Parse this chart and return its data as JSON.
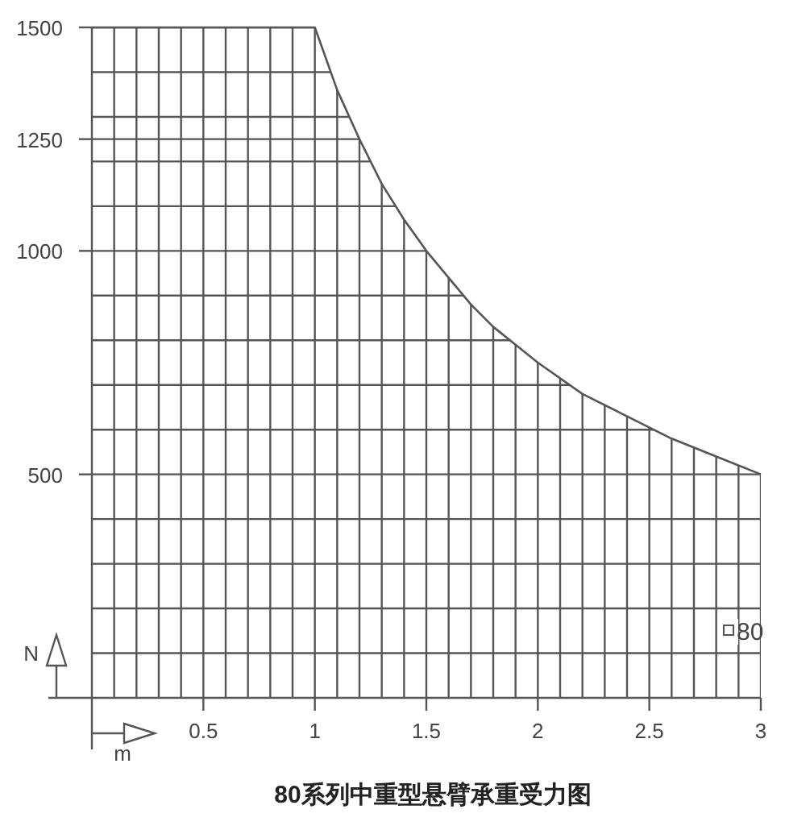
{
  "chart_data": {
    "type": "area",
    "title": "80系列中重型悬臂承重受力图",
    "xlabel": "m",
    "ylabel": "N",
    "x": [
      0,
      1,
      1.1,
      1.2,
      1.3,
      1.4,
      1.5,
      1.6,
      1.7,
      1.8,
      1.9,
      2,
      2.2,
      2.4,
      2.6,
      2.8,
      3
    ],
    "series": [
      {
        "name": "80",
        "color": "#555555",
        "values": [
          1500,
          1500,
          1360,
          1250,
          1150,
          1070,
          1000,
          940,
          880,
          830,
          790,
          750,
          680,
          630,
          580,
          540,
          500
        ]
      }
    ],
    "xlim": [
      0,
      3
    ],
    "ylim": [
      0,
      1500
    ],
    "xticks": [
      {
        "value": 0.1,
        "label": null
      },
      {
        "value": 0.2,
        "label": null
      },
      {
        "value": 0.3,
        "label": null
      },
      {
        "value": 0.4,
        "label": null
      },
      0.5,
      {
        "value": 0.6,
        "label": null
      },
      {
        "value": 0.7,
        "label": null
      },
      {
        "value": 0.8,
        "label": null
      },
      {
        "value": 0.9,
        "label": null
      },
      1,
      {
        "value": 1.1,
        "label": null
      },
      {
        "value": 1.2,
        "label": null
      },
      {
        "value": 1.3,
        "label": null
      },
      {
        "value": 1.4,
        "label": null
      },
      1.5,
      {
        "value": 1.6,
        "label": null
      },
      {
        "value": 1.7,
        "label": null
      },
      {
        "value": 1.8,
        "label": null
      },
      {
        "value": 1.9,
        "label": null
      },
      2,
      {
        "value": 2.1,
        "label": null
      },
      {
        "value": 2.2,
        "label": null
      },
      {
        "value": 2.3,
        "label": null
      },
      {
        "value": 2.4,
        "label": null
      },
      2.5,
      {
        "value": 2.6,
        "label": null
      },
      {
        "value": 2.7,
        "label": null
      },
      {
        "value": 2.8,
        "label": null
      },
      {
        "value": 2.9,
        "label": null
      },
      3
    ],
    "yticks": [
      {
        "value": 100,
        "label": null
      },
      {
        "value": 200,
        "label": null
      },
      {
        "value": 300,
        "label": null
      },
      {
        "value": 400,
        "label": null
      },
      500,
      {
        "value": 600,
        "label": null
      },
      {
        "value": 700,
        "label": null
      },
      {
        "value": 800,
        "label": null
      },
      {
        "value": 900,
        "label": null
      },
      1000,
      {
        "value": 1100,
        "label": null
      },
      {
        "value": 1200,
        "label": null
      },
      1250,
      {
        "value": 1300,
        "label": null
      },
      {
        "value": 1400,
        "label": null
      },
      1500
    ],
    "grid": true,
    "legend": "bottom right"
  }
}
